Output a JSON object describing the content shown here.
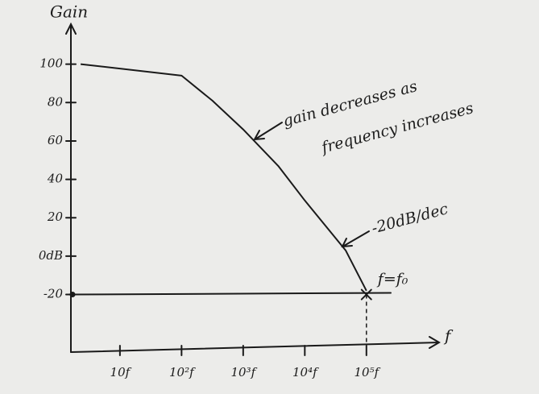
{
  "chart_data": {
    "type": "line",
    "y_label": "Gain",
    "x_label": "f",
    "x": [
      2.3,
      100,
      316,
      1000,
      3700,
      10000,
      46000,
      100000
    ],
    "series": [
      {
        "color": "#1a1a1a",
        "values": [
          100,
          94,
          81,
          66,
          47,
          29,
          3,
          -18
        ]
      }
    ],
    "xscale": "log",
    "xlim": [
      1.6,
      1300000
    ],
    "xticks": [
      {
        "value": 10,
        "label": "10f"
      },
      {
        "value": 100,
        "label": "10²f"
      },
      {
        "value": 1000,
        "label": "10³f"
      },
      {
        "value": 10000,
        "label": "10⁴f"
      },
      {
        "value": 100000,
        "label": "10⁵f"
      }
    ],
    "ylim": [
      -50,
      120
    ],
    "yticks": [
      100,
      80,
      60,
      40,
      20,
      {
        "value": 0,
        "label": "0dB"
      },
      -20
    ],
    "hline": -20,
    "marker": {
      "x": 100000,
      "y": -20,
      "label": "f=f₀"
    },
    "annotations": [
      "gain decreases as",
      "frequency increases",
      "-20dB/dec"
    ]
  }
}
